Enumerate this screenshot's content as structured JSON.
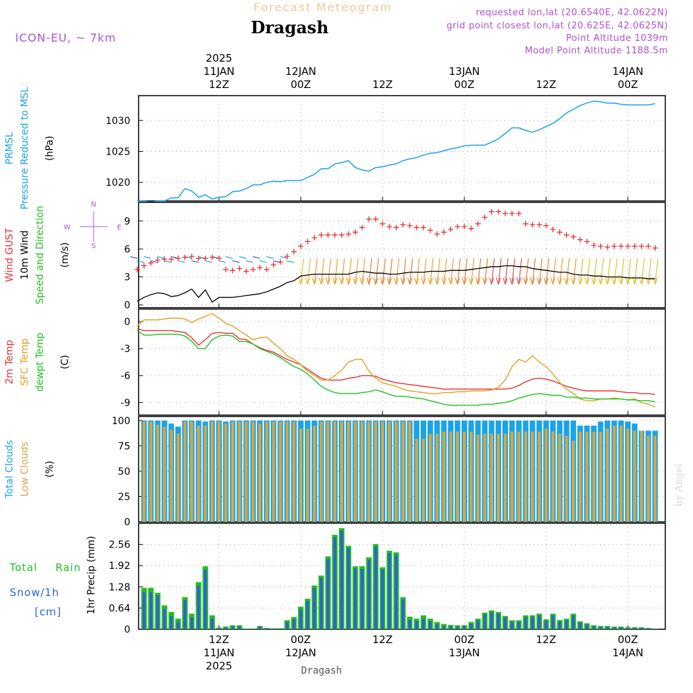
{
  "header": {
    "title_top": "Forecast Meteogram",
    "location": "Dragash",
    "model": "ICON-EU, ~ 7km",
    "requested": "requested lon,lat (20.6540E, 42.0622N)",
    "grid_point": "grid point closest lon,lat (20.625E, 42.0625N)",
    "point_alt": "Point Altitude 1039m",
    "model_alt": "Model Point Altitude 1188.5m",
    "footer_location": "Dragash",
    "watermark": "by Angel"
  },
  "time_axis": {
    "ticks_top": [
      {
        "t": 12,
        "lines": [
          "2025",
          "11JAN",
          "12Z"
        ]
      },
      {
        "t": 24,
        "lines": [
          "12JAN",
          "00Z"
        ]
      },
      {
        "t": 36,
        "lines": [
          "12Z"
        ]
      },
      {
        "t": 48,
        "lines": [
          "13JAN",
          "00Z"
        ]
      },
      {
        "t": 60,
        "lines": [
          "12Z"
        ]
      },
      {
        "t": 72,
        "lines": [
          "14JAN",
          "00Z"
        ]
      }
    ],
    "ticks_bottom": [
      {
        "t": 12,
        "lines": [
          "12Z",
          "11JAN",
          "2025"
        ]
      },
      {
        "t": 24,
        "lines": [
          "00Z",
          "12JAN"
        ]
      },
      {
        "t": 36,
        "lines": [
          "12Z"
        ]
      },
      {
        "t": 48,
        "lines": [
          "00Z",
          "13JAN"
        ]
      },
      {
        "t": 60,
        "lines": [
          "12Z"
        ]
      },
      {
        "t": 72,
        "lines": [
          "00Z",
          "14JAN"
        ]
      }
    ]
  },
  "colors": {
    "pressure": "#1aa3e8",
    "gust": "#e83030",
    "wind": "#000000",
    "temp2m": "#e83030",
    "sfc": "#e0a020",
    "dewpt": "#20c020",
    "total_cloud": "#1aa3e8",
    "low_cloud": "#d8a840",
    "rain": "#20c020",
    "snow": "#3060d8",
    "label_purple": "#b050d0",
    "title_orange": "#f0c890"
  },
  "chart_data": [
    {
      "type": "line",
      "panel": "pressure",
      "label_lines": [
        "PRMSL",
        "Pressure Reduced to MSL"
      ],
      "unit": "(hPa)",
      "yticks": [
        1020,
        1025,
        1030
      ],
      "ylim": [
        1017,
        1034
      ],
      "x_start_hour": 0,
      "series": [
        {
          "name": "PRMSL",
          "values": [
            1017,
            1017,
            1016.8,
            1017,
            1017,
            1017.5,
            1017.5,
            1019,
            1018.6,
            1017.6,
            1018,
            1017.3,
            1017.6,
            1017.7,
            1018.5,
            1018.6,
            1019,
            1019.6,
            1019.6,
            1020,
            1020.2,
            1020.1,
            1020.3,
            1020.3,
            1020.3,
            1020.8,
            1021.3,
            1022.2,
            1022.2,
            1023,
            1023.2,
            1023.5,
            1022.4,
            1022,
            1021.8,
            1022.4,
            1022.5,
            1022.8,
            1023,
            1023.5,
            1023.8,
            1024,
            1024.4,
            1024.7,
            1024.8,
            1025.1,
            1025.4,
            1025.6,
            1025.9,
            1026,
            1026,
            1026,
            1026.5,
            1027,
            1027.9,
            1028.8,
            1028.8,
            1028.4,
            1028.1,
            1028.5,
            1029,
            1029.5,
            1030.3,
            1031.2,
            1031.8,
            1032.4,
            1032.8,
            1033.1,
            1033,
            1032.8,
            1032.8,
            1032.6,
            1032.5,
            1032.5,
            1032.5,
            1032.5,
            1032.7
          ]
        }
      ]
    },
    {
      "type": "line",
      "panel": "wind",
      "label_lines": [
        "Wind GUST",
        "10m Wind",
        "Speed and Direction"
      ],
      "unit": "(m/s)",
      "compass": {
        "n": "N",
        "s": "S",
        "w": "W",
        "e": "E"
      },
      "yticks": [
        0,
        3,
        6,
        9
      ],
      "ylim": [
        -0.3,
        11
      ],
      "x_start_hour": 0,
      "gust": [
        3.8,
        4.2,
        4.5,
        4.8,
        4.9,
        4.9,
        5.0,
        5.1,
        5.2,
        5.0,
        5.0,
        5.1,
        5.0,
        3.8,
        3.7,
        3.9,
        3.6,
        3.8,
        4.0,
        3.8,
        4.3,
        4.6,
        5.2,
        5.7,
        6.3,
        6.8,
        7.2,
        7.5,
        7.5,
        7.5,
        7.5,
        7.6,
        7.8,
        8.3,
        9.2,
        9.2,
        8.7,
        8.4,
        8.3,
        8.6,
        8.5,
        8.3,
        8.3,
        8.0,
        7.6,
        7.8,
        8.1,
        8.4,
        8.4,
        8.2,
        8.7,
        9.4,
        10.0,
        10.0,
        9.8,
        9.8,
        9.8,
        8.7,
        8.6,
        8.6,
        8.5,
        8.1,
        7.8,
        7.5,
        7.3,
        7.0,
        6.8,
        6.4,
        6.3,
        6.2,
        6.3,
        6.3,
        6.3,
        6.3,
        6.3,
        6.3,
        6.1
      ],
      "wind": [
        0.4,
        0.8,
        1.1,
        1.3,
        1.2,
        0.9,
        1.0,
        1.3,
        1.7,
        0.8,
        1.6,
        0.3,
        0.8,
        0.8,
        0.8,
        0.9,
        1.0,
        1.1,
        1.2,
        1.4,
        1.7,
        2.0,
        2.4,
        2.6,
        3.1,
        3.2,
        3.3,
        3.3,
        3.3,
        3.3,
        3.3,
        3.3,
        3.5,
        3.6,
        3.5,
        3.4,
        3.4,
        3.3,
        3.3,
        3.4,
        3.5,
        3.5,
        3.5,
        3.6,
        3.6,
        3.6,
        3.7,
        3.7,
        3.7,
        3.8,
        3.9,
        4.0,
        4.1,
        4.1,
        4.2,
        4.2,
        4.1,
        4.1,
        3.9,
        3.8,
        3.7,
        3.6,
        3.5,
        3.5,
        3.3,
        3.2,
        3.2,
        3.1,
        3.1,
        3.0,
        3.0,
        3.0,
        2.9,
        2.9,
        2.9,
        2.8,
        2.8
      ]
    },
    {
      "type": "line",
      "panel": "temperature",
      "label_lines": [
        "2m Temp",
        "SFC Temp",
        "dewpt Temp"
      ],
      "unit": "(C)",
      "yticks": [
        0,
        -3,
        -6,
        -9
      ],
      "ylim": [
        -10.4,
        1.4
      ],
      "x_start_hour": 0,
      "series": [
        {
          "name": "2m Temp",
          "values": [
            -0.8,
            -1.0,
            -1.0,
            -1.0,
            -1.0,
            -1.0,
            -1.1,
            -1.2,
            -1.8,
            -2.6,
            -2.0,
            -1.3,
            -1.2,
            -1.3,
            -1.3,
            -1.9,
            -2.0,
            -2.5,
            -2.9,
            -3.2,
            -3.4,
            -3.8,
            -4.2,
            -4.5,
            -4.8,
            -5.3,
            -5.8,
            -6.3,
            -6.5,
            -6.5,
            -6.5,
            -6.3,
            -6.2,
            -6.0,
            -6.0,
            -6.1,
            -6.4,
            -6.6,
            -6.8,
            -6.9,
            -7.0,
            -7.1,
            -7.2,
            -7.3,
            -7.4,
            -7.5,
            -7.5,
            -7.5,
            -7.5,
            -7.5,
            -7.5,
            -7.5,
            -7.5,
            -7.5,
            -7.5,
            -7.4,
            -7.1,
            -6.7,
            -6.4,
            -6.3,
            -6.4,
            -6.6,
            -6.9,
            -7.2,
            -7.4,
            -7.6,
            -7.7,
            -7.7,
            -7.7,
            -7.7,
            -7.7,
            -7.8,
            -7.9,
            -7.9,
            -8.0,
            -8.0,
            -8.1
          ]
        },
        {
          "name": "SFC Temp",
          "values": [
            -0.5,
            0.2,
            0.2,
            0.2,
            0.3,
            0.4,
            0.4,
            0.3,
            -0.1,
            0.3,
            0.6,
            0.9,
            0.4,
            -0.2,
            -0.5,
            -1.0,
            -1.5,
            -2.0,
            -1.8,
            -1.7,
            -2.4,
            -3.0,
            -3.8,
            -4.2,
            -4.8,
            -5.5,
            -6.0,
            -6.5,
            -6.5,
            -6.0,
            -5.4,
            -4.5,
            -4.2,
            -4.2,
            -5.5,
            -6.3,
            -6.8,
            -7.0,
            -7.2,
            -7.5,
            -7.7,
            -7.8,
            -7.9,
            -8.0,
            -8.0,
            -7.9,
            -7.9,
            -7.8,
            -7.8,
            -7.7,
            -7.7,
            -7.7,
            -7.6,
            -7.3,
            -6.5,
            -5.0,
            -4.2,
            -4.5,
            -3.8,
            -4.5,
            -5.0,
            -5.8,
            -6.8,
            -7.5,
            -8.0,
            -8.6,
            -8.8,
            -8.8,
            -8.6,
            -8.6,
            -8.5,
            -8.6,
            -8.7,
            -8.6,
            -9.0,
            -9.2,
            -9.5
          ]
        },
        {
          "name": "dewpt Temp",
          "values": [
            -1.0,
            -1.5,
            -1.5,
            -1.4,
            -1.4,
            -1.4,
            -1.4,
            -1.6,
            -2.2,
            -3.0,
            -3.0,
            -2.0,
            -1.6,
            -1.5,
            -1.6,
            -2.2,
            -2.2,
            -2.5,
            -3.0,
            -3.3,
            -3.6,
            -4.0,
            -4.5,
            -5.0,
            -5.3,
            -5.8,
            -6.5,
            -7.2,
            -7.6,
            -7.9,
            -8.0,
            -8.0,
            -8.0,
            -7.9,
            -7.8,
            -7.6,
            -7.8,
            -8.1,
            -8.3,
            -8.3,
            -8.4,
            -8.5,
            -8.6,
            -8.8,
            -9.0,
            -9.2,
            -9.3,
            -9.3,
            -9.3,
            -9.3,
            -9.3,
            -9.2,
            -9.2,
            -9.1,
            -9.0,
            -8.8,
            -8.5,
            -8.3,
            -8.1,
            -8.0,
            -8.1,
            -8.2,
            -8.2,
            -8.4,
            -8.4,
            -8.5,
            -8.5,
            -8.6,
            -8.6,
            -8.6,
            -8.6,
            -8.6,
            -8.7,
            -8.7,
            -8.8,
            -8.8,
            -8.9
          ]
        }
      ]
    },
    {
      "type": "bar",
      "panel": "clouds",
      "label_lines": [
        "Total Clouds",
        "Low Clouds"
      ],
      "unit": "(%)",
      "yticks": [
        0,
        25,
        50,
        75,
        100
      ],
      "ylim": [
        0,
        104
      ],
      "x_start_hour": 1,
      "series": [
        {
          "name": "Total Clouds",
          "values": [
            100,
            100,
            100,
            100,
            97,
            94,
            100,
            100,
            100,
            99,
            100,
            100,
            99,
            100,
            100,
            100,
            100,
            100,
            100,
            100,
            100,
            100,
            100,
            100,
            100,
            100,
            100,
            100,
            100,
            100,
            100,
            100,
            100,
            100,
            100,
            100,
            100,
            100,
            100,
            100,
            100,
            100,
            100,
            100,
            100,
            100,
            100,
            100,
            100,
            100,
            100,
            100,
            100,
            100,
            100,
            100,
            100,
            100,
            100,
            100,
            100,
            100,
            100,
            100,
            95,
            95,
            95,
            99,
            100,
            100,
            100,
            99,
            97,
            90,
            90,
            90
          ]
        },
        {
          "name": "Low Clouds",
          "values": [
            99,
            99,
            96,
            94,
            91,
            87,
            99,
            99,
            95,
            95,
            99,
            99,
            97,
            99,
            99,
            99,
            99,
            97,
            99,
            99,
            99,
            99,
            99,
            92,
            92,
            95,
            99,
            99,
            99,
            99,
            99,
            99,
            99,
            99,
            99,
            99,
            99,
            99,
            99,
            99,
            82,
            82,
            87,
            87,
            89,
            89,
            89,
            89,
            89,
            86,
            87,
            87,
            87,
            87,
            89,
            89,
            89,
            89,
            89,
            92,
            89,
            87,
            85,
            80,
            89,
            89,
            89,
            89,
            92,
            95,
            95,
            92,
            90,
            90,
            85,
            85
          ]
        }
      ]
    },
    {
      "type": "bar",
      "panel": "precipitation",
      "label_lines": [
        "Total",
        "Rain",
        "Snow/1h",
        "[cm]"
      ],
      "ylabel": "1hr Precip (mm)",
      "yticks": [
        "0",
        "0.64",
        "1.28",
        "1.92",
        "2.56"
      ],
      "ylim": [
        0,
        3.2
      ],
      "x_start_hour": 1,
      "series": [
        {
          "name": "Total Rain",
          "values": [
            1.25,
            1.25,
            1.1,
            0.72,
            0.52,
            0.32,
            0.97,
            0.47,
            1.42,
            1.9,
            0.42,
            0.05,
            0.08,
            0.12,
            0.12,
            0.02,
            0.02,
            0.1,
            0.04,
            0.03,
            0.03,
            0.27,
            0.37,
            0.68,
            0.92,
            1.32,
            1.62,
            2.2,
            2.85,
            3.05,
            2.52,
            1.9,
            1.9,
            2.17,
            2.57,
            1.87,
            2.37,
            2.32,
            0.97,
            0.38,
            0.32,
            0.42,
            0.32,
            0.22,
            0.16,
            0.13,
            0.12,
            0.12,
            0.22,
            0.32,
            0.5,
            0.57,
            0.52,
            0.4,
            0.27,
            0.27,
            0.42,
            0.42,
            0.47,
            0.3,
            0.47,
            0.28,
            0.32,
            0.47,
            0.24,
            0.18,
            0.12,
            0.1,
            0.1,
            0.08,
            0.08,
            0.06,
            0.06,
            0.06,
            0.04,
            0.02
          ]
        },
        {
          "name": "Snow/1h",
          "values": [
            1.12,
            1.12,
            1.03,
            0.62,
            0.4,
            0.22,
            0.88,
            0.37,
            1.32,
            1.8,
            0.32,
            0.03,
            0.05,
            0.09,
            0.09,
            0.01,
            0.01,
            0.08,
            0.03,
            0.02,
            0.02,
            0.22,
            0.3,
            0.6,
            0.85,
            1.25,
            1.55,
            2.12,
            2.78,
            2.98,
            2.45,
            1.84,
            1.82,
            2.1,
            2.5,
            1.8,
            2.3,
            2.25,
            0.9,
            0.28,
            0.25,
            0.32,
            0.24,
            0.15,
            0.1,
            0.09,
            0.08,
            0.09,
            0.17,
            0.27,
            0.45,
            0.52,
            0.47,
            0.35,
            0.22,
            0.22,
            0.37,
            0.38,
            0.42,
            0.25,
            0.42,
            0.23,
            0.27,
            0.42,
            0.2,
            0.14,
            0.08,
            0.07,
            0.07,
            0.06,
            0.06,
            0.04,
            0.04,
            0.04,
            0.03,
            0.02
          ]
        }
      ]
    }
  ]
}
